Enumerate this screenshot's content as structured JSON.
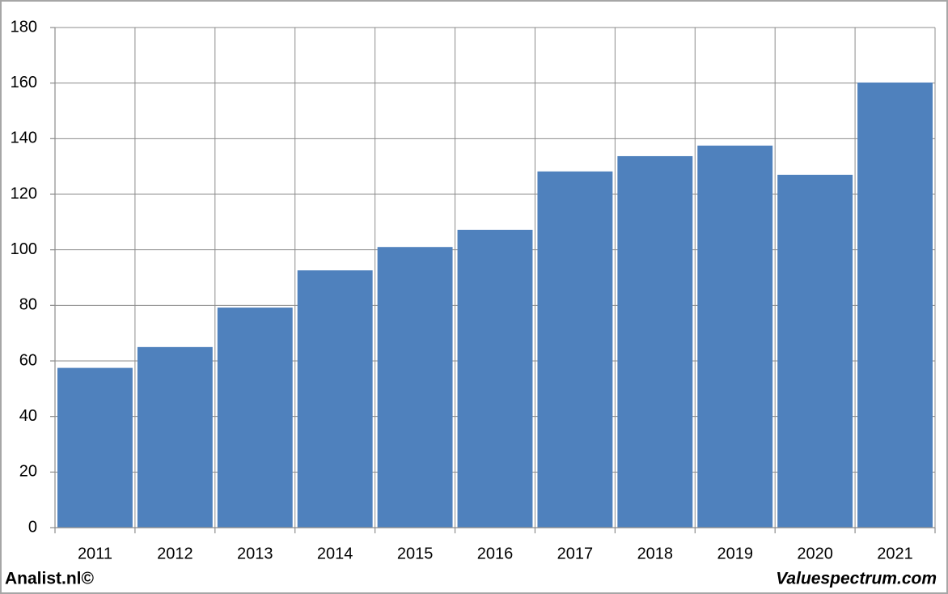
{
  "chart_data": {
    "type": "bar",
    "categories": [
      "2011",
      "2012",
      "2013",
      "2014",
      "2015",
      "2016",
      "2017",
      "2018",
      "2019",
      "2020",
      "2021"
    ],
    "values": [
      57.5,
      65,
      79.2,
      92.6,
      101,
      107.2,
      128.2,
      133.7,
      137.5,
      127,
      160.2
    ],
    "color": "#4f81bd",
    "ylim": [
      0,
      180
    ],
    "yticks": [
      0,
      20,
      40,
      60,
      80,
      100,
      120,
      140,
      160,
      180
    ],
    "grid": true,
    "source": "Analist.nl©",
    "credit": "Valuespectrum.com"
  }
}
